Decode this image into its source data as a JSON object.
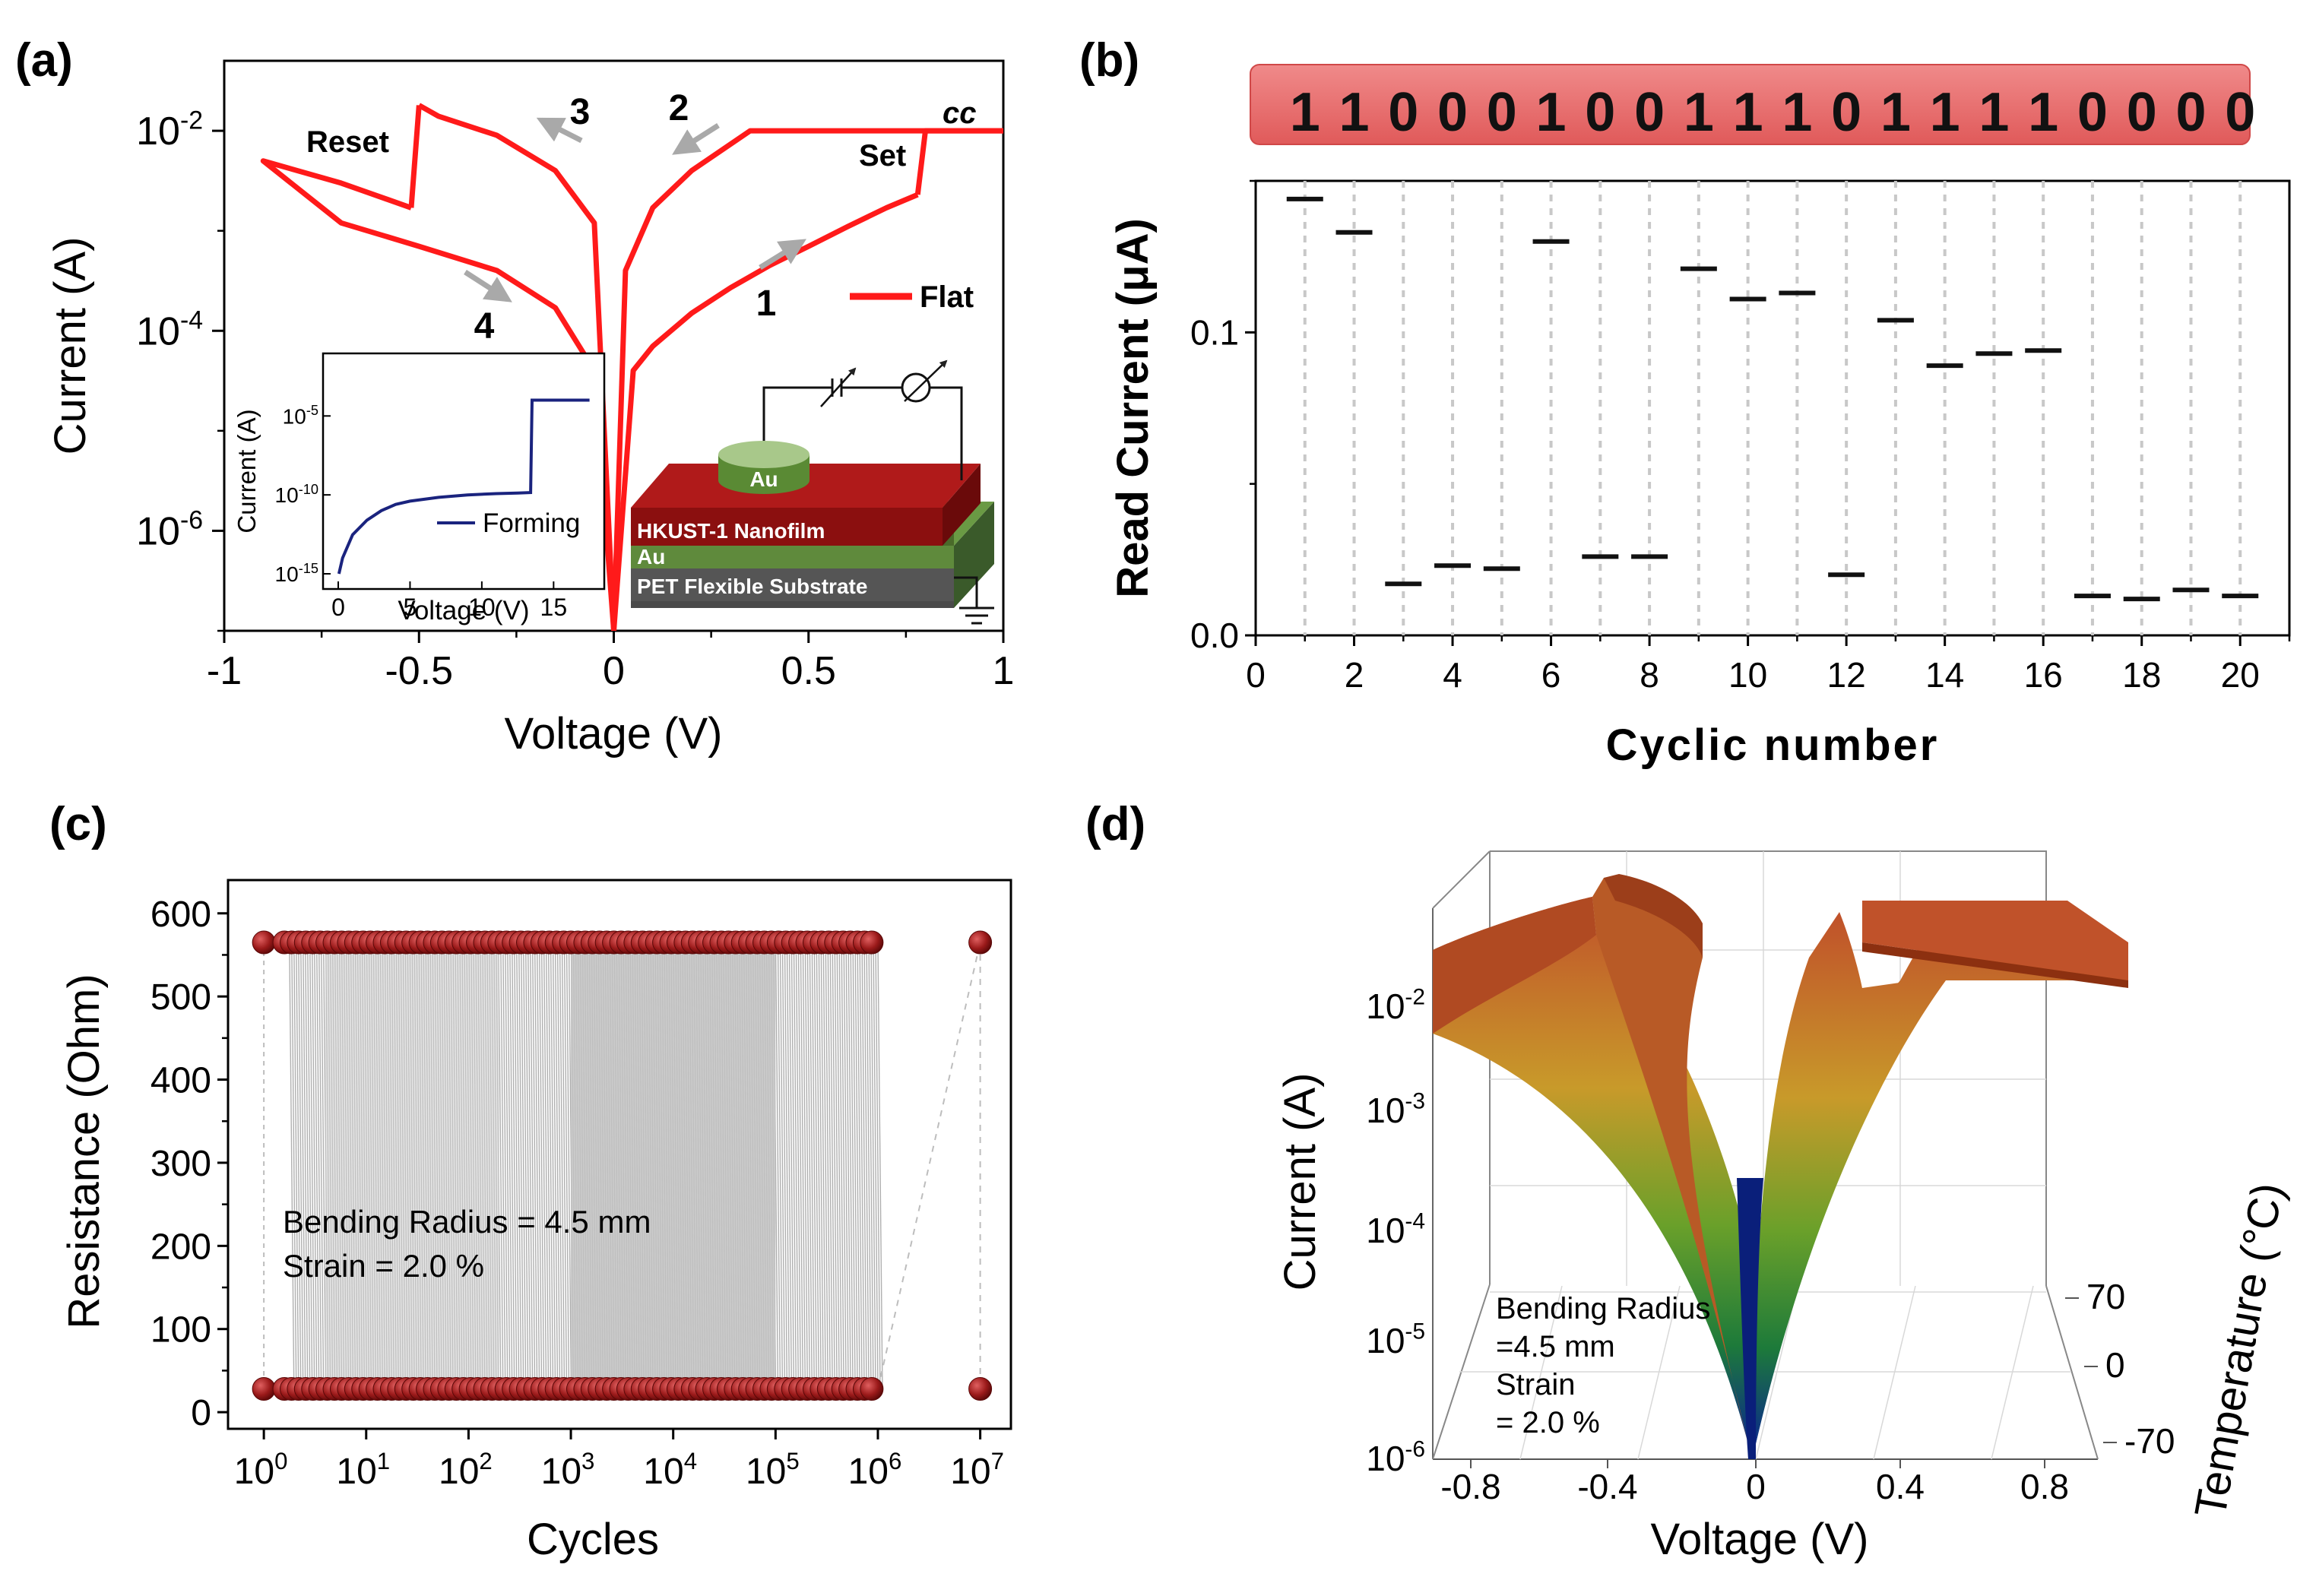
{
  "panels": {
    "a": {
      "label": "(a)"
    },
    "b": {
      "label": "(b)"
    },
    "c": {
      "label": "(c)"
    },
    "d": {
      "label": "(d)"
    }
  },
  "colors": {
    "red_curve": "#ff1a1a",
    "navy_curve": "#1a237e",
    "bar": "#e57373",
    "dot": "#8b1010",
    "gray_line": "#b0b0b0",
    "arrow": "#a9a9a9"
  },
  "chart_data": [
    {
      "id": "a",
      "type": "line",
      "xlabel": "Voltage (V)",
      "ylabel": "Current (A)",
      "xlim": [
        -1,
        1
      ],
      "ylim_log10": [
        -7,
        -1.3
      ],
      "scale_y": "log",
      "xticks": [
        "-1",
        "-0.5",
        "0",
        "0.5",
        "1"
      ],
      "yticks": [
        {
          "base": "10",
          "exp": "-2",
          "value": 0.01
        },
        {
          "base": "10",
          "exp": "-4",
          "value": 0.0001
        },
        {
          "base": "10",
          "exp": "-6",
          "value": 1e-06
        }
      ],
      "legend": [
        "Flat"
      ],
      "legend_position": "right",
      "annotations": {
        "reset": "Reset",
        "set": "Set",
        "cc": "cc",
        "arrow_numbers": [
          "1",
          "2",
          "3",
          "4"
        ]
      },
      "series": [
        {
          "name": "Flat",
          "segments": [
            {
              "x": [
                0.0,
                0.05,
                0.1,
                0.2,
                0.3,
                0.4,
                0.5,
                0.6,
                0.7,
                0.78
              ],
              "y": [
                1e-07,
                4e-05,
                7e-05,
                0.00015,
                0.00027,
                0.00045,
                0.0007,
                0.0011,
                0.0017,
                0.0023
              ]
            },
            {
              "x": [
                0.78,
                0.8,
                1.0
              ],
              "y": [
                0.0023,
                0.01,
                0.01
              ]
            },
            {
              "x": [
                1.0,
                0.35,
                0.2,
                0.1,
                0.03,
                0.0
              ],
              "y": [
                0.01,
                0.01,
                0.004,
                0.0017,
                0.0004,
                1e-07
              ]
            },
            {
              "x": [
                0.0,
                -0.05,
                -0.15,
                -0.3,
                -0.45,
                -0.5
              ],
              "y": [
                1e-07,
                0.0012,
                0.004,
                0.009,
                0.014,
                0.018
              ]
            },
            {
              "x": [
                -0.5,
                -0.52
              ],
              "y": [
                0.018,
                0.0017
              ]
            },
            {
              "x": [
                -0.52,
                -0.7,
                -0.9,
                -0.7,
                -0.5,
                -0.3,
                -0.15,
                -0.05,
                0.0
              ],
              "y": [
                0.0017,
                0.003,
                0.005,
                0.0012,
                0.0007,
                0.0004,
                0.00017,
                4e-05,
                1e-07
              ]
            }
          ]
        }
      ],
      "inset": {
        "xlabel": "Voltage (V)",
        "ylabel": "Current (A)",
        "xlim": [
          0,
          18
        ],
        "ylim_log10": [
          -15,
          -2
        ],
        "xticks": [
          "0",
          "5",
          "10",
          "15"
        ],
        "yticks": [
          {
            "base": "10",
            "exp": "-5",
            "value": 1e-05
          },
          {
            "base": "10",
            "exp": "-10",
            "value": 1e-10
          },
          {
            "base": "10",
            "exp": "-15",
            "value": 1e-15
          }
        ],
        "legend": [
          "Forming"
        ],
        "series": [
          {
            "name": "Forming",
            "x": [
              0.05,
              0.3,
              1,
              2,
              3,
              4,
              5,
              7,
              9,
              11,
              12.5,
              13.4,
              13.5,
              17.5
            ],
            "y": [
              1e-15,
              1e-14,
              3e-13,
              2.5e-12,
              1e-11,
              2.5e-11,
              4e-11,
              7e-11,
              1e-10,
              1.2e-10,
              1.3e-10,
              1.4e-10,
              0.0001,
              0.0001
            ]
          }
        ]
      },
      "device_diagram": {
        "layers": [
          "HKUST-1 Nanofilm",
          "Au",
          "PET Flexible Substrate"
        ],
        "top_electrode": "Au"
      }
    },
    {
      "id": "b",
      "type": "scatter",
      "marker": "dash",
      "xlabel": "Cyclic number",
      "ylabel": "Read Current (μA)",
      "xlim": [
        0,
        21
      ],
      "ylim": [
        0,
        0.15
      ],
      "xticks": [
        "0",
        "2",
        "4",
        "6",
        "8",
        "10",
        "12",
        "14",
        "16",
        "18",
        "20"
      ],
      "yticks": [
        "0.0",
        "0.1"
      ],
      "bits": [
        "1",
        "1",
        "0",
        "0",
        "0",
        "1",
        "0",
        "0",
        "1",
        "1",
        "1",
        "0",
        "1",
        "1",
        "1",
        "1",
        "0",
        "0",
        "0",
        "0"
      ],
      "x": [
        1,
        2,
        3,
        4,
        5,
        6,
        7,
        8,
        9,
        10,
        11,
        12,
        13,
        14,
        15,
        16,
        17,
        18,
        19,
        20
      ],
      "y": [
        0.144,
        0.133,
        0.017,
        0.023,
        0.022,
        0.13,
        0.026,
        0.026,
        0.121,
        0.111,
        0.113,
        0.02,
        0.104,
        0.089,
        0.093,
        0.094,
        0.013,
        0.012,
        0.015,
        0.013
      ]
    },
    {
      "id": "c",
      "type": "scatter",
      "xlabel": "Cycles",
      "ylabel": "Resistance (Ohm)",
      "scale_x": "log",
      "xlim_log10": [
        -0.35,
        7.3
      ],
      "ylim": [
        -20,
        640
      ],
      "yticks": [
        "0",
        "100",
        "200",
        "300",
        "400",
        "500",
        "600"
      ],
      "xticks": [
        {
          "base": "10",
          "exp": "0"
        },
        {
          "base": "10",
          "exp": "1"
        },
        {
          "base": "10",
          "exp": "2"
        },
        {
          "base": "10",
          "exp": "3"
        },
        {
          "base": "10",
          "exp": "4"
        },
        {
          "base": "10",
          "exp": "5"
        },
        {
          "base": "10",
          "exp": "6"
        },
        {
          "base": "10",
          "exp": "7"
        }
      ],
      "annotation": [
        "Bending Radius = 4.5 mm",
        "Strain = 2.0 %"
      ],
      "series": [
        {
          "name": "",
          "cycles_range": [
            1,
            1000000
          ],
          "isolated_points": [
            1,
            10000000
          ],
          "resistance": 565
        },
        {
          "name": "",
          "cycles_range": [
            1,
            1000000
          ],
          "isolated_points": [
            1,
            10000000
          ],
          "resistance": 28
        }
      ]
    },
    {
      "id": "d",
      "type": "surface3d",
      "xlabel": "Voltage (V)",
      "ylabel": "Current (A)",
      "zlabel": "Temperature (°C)",
      "xticks": [
        "-0.8",
        "-0.4",
        "0",
        "0.4",
        "0.8"
      ],
      "yticks": [
        {
          "base": "10",
          "exp": "-2"
        },
        {
          "base": "10",
          "exp": "-3"
        },
        {
          "base": "10",
          "exp": "-4"
        },
        {
          "base": "10",
          "exp": "-5"
        },
        {
          "base": "10",
          "exp": "-6"
        }
      ],
      "zticks": [
        "70",
        "0",
        "-70"
      ],
      "temperature_range": [
        -70,
        70
      ],
      "annotation": [
        "Bending Radius",
        "=4.5 mm",
        "Strain",
        "= 2.0 %"
      ]
    }
  ]
}
